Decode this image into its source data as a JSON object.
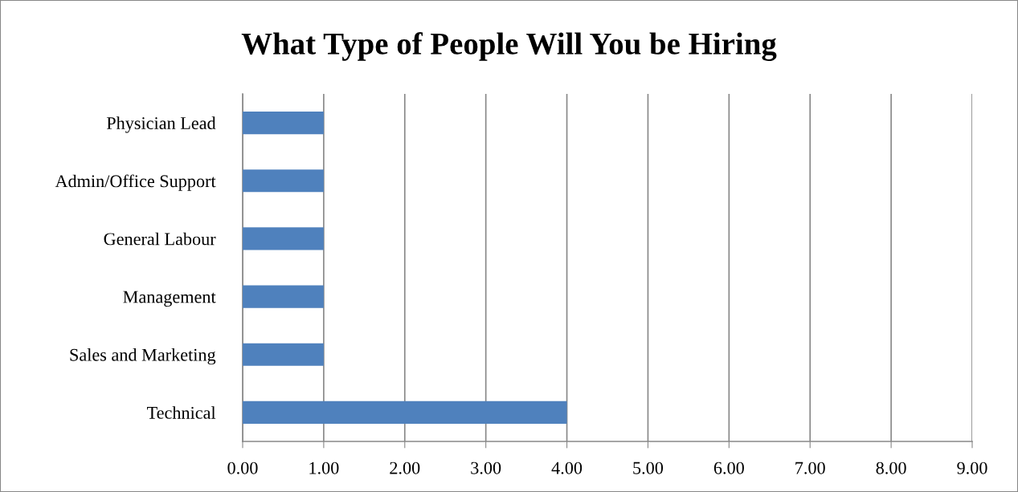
{
  "chart_data": {
    "type": "bar",
    "orientation": "horizontal",
    "title": "What Type of People Will You be Hiring",
    "categories": [
      "Physician Lead",
      "Admin/Office Support",
      "General Labour",
      "Management",
      "Sales and Marketing",
      "Technical"
    ],
    "values": [
      1,
      1,
      1,
      1,
      1,
      4
    ],
    "color": "#4f81bd",
    "xlim": [
      0,
      9
    ],
    "xticks": [
      {
        "value": 0,
        "label": "0.00"
      },
      {
        "value": 1,
        "label": "1.00"
      },
      {
        "value": 2,
        "label": "2.00"
      },
      {
        "value": 3,
        "label": "3.00"
      },
      {
        "value": 4,
        "label": "4.00"
      },
      {
        "value": 5,
        "label": "5.00"
      },
      {
        "value": 6,
        "label": "6.00"
      },
      {
        "value": 7,
        "label": "7.00"
      },
      {
        "value": 8,
        "label": "8.00"
      },
      {
        "value": 9,
        "label": "9.00"
      }
    ],
    "grid": "x",
    "legend": false
  }
}
